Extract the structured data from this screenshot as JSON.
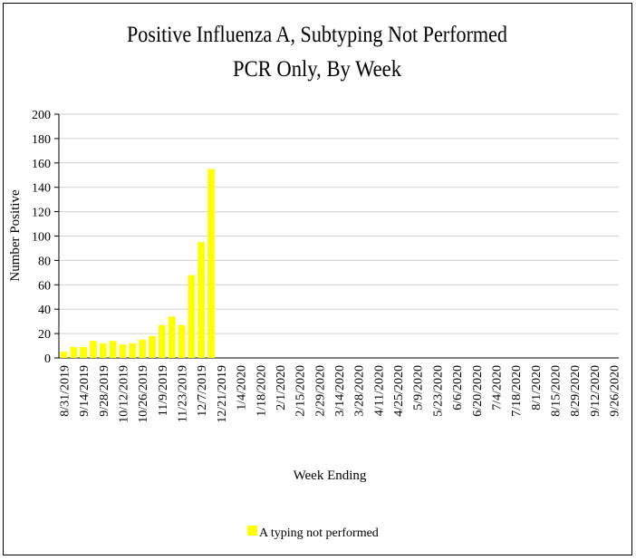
{
  "chart_data": {
    "type": "bar",
    "title": "Positive Influenza A, Subtyping Not Performed",
    "subtitle": "PCR Only, By Week",
    "x_label": "Week Ending",
    "y_label": "Number Positive",
    "categories": [
      "8/31/2019",
      null,
      "9/14/2019",
      null,
      "9/28/2019",
      null,
      "10/12/2019",
      null,
      "10/26/2019",
      null,
      "11/9/2019",
      null,
      "11/23/2019",
      null,
      "12/7/2019",
      null,
      "12/21/2019",
      null,
      "1/4/2020",
      null,
      "1/18/2020",
      null,
      "2/1/2020",
      null,
      "2/15/2020",
      null,
      "2/29/2020",
      null,
      "3/14/2020",
      null,
      "3/28/2020",
      null,
      "4/11/2020",
      null,
      "4/25/2020",
      null,
      "5/9/2020",
      null,
      "5/23/2020",
      null,
      "6/6/2020",
      null,
      "6/20/2020",
      null,
      "7/4/2020",
      null,
      "7/18/2020",
      null,
      "8/1/2020",
      null,
      "8/15/2020",
      null,
      "8/29/2020",
      null,
      "9/12/2020",
      null,
      "9/26/2020"
    ],
    "series": [
      {
        "name": "A typing not performed",
        "color": "#ffff00",
        "values": [
          5,
          9,
          9,
          14,
          12,
          14,
          11,
          12,
          15,
          18,
          27,
          34,
          27,
          68,
          95,
          155,
          null,
          null,
          null,
          null,
          null,
          null,
          null,
          null,
          null,
          null,
          null,
          null,
          null,
          null,
          null,
          null,
          null,
          null,
          null,
          null,
          null,
          null,
          null,
          null,
          null,
          null,
          null,
          null,
          null,
          null,
          null,
          null,
          null,
          null,
          null,
          null,
          null,
          null,
          null,
          null,
          null
        ]
      }
    ],
    "ylim": [
      0,
      200
    ],
    "yticks": [
      0,
      20,
      40,
      60,
      80,
      100,
      120,
      140,
      160,
      180,
      200
    ],
    "grid": true,
    "legend": "bottom"
  }
}
